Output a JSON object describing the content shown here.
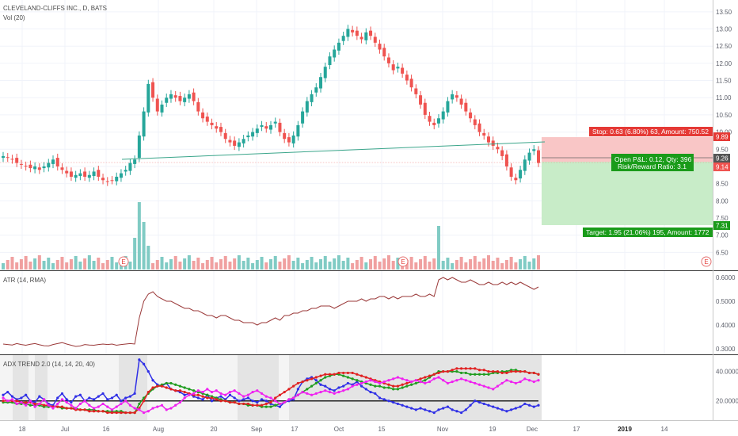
{
  "symbol_title": "CLEVELAND-CLIFFS INC., D, BATS",
  "volume_label": "Vol (20)",
  "atr_label": "ATR (14, RMA)",
  "adx_label": "ADX TREND 2.0 (14, 14, 20, 40)",
  "earnings_marker": "E",
  "colors": {
    "up": "#26a69a",
    "down": "#ef5350",
    "vol_up": "#80cbc4",
    "vol_down": "#f0a0a0",
    "atr_line": "#9b3a3a",
    "stop_zone": "#f9c6c6",
    "target_zone": "#c8ecc8",
    "trend_line": "#3aa58a",
    "adx_blue": "#2f2fe6",
    "adx_green": "#1f9c1f",
    "adx_red": "#e02020",
    "adx_magenta": "#f020f0"
  },
  "position_tool": {
    "stop_label": "Stop: 0.63 (6.80%) 63, Amount: 750.52",
    "open_pl_label": "Open P&L: 0.12, Qty: 396",
    "risk_reward_label": "Risk/Reward Ratio: 3.1",
    "target_label": "Target: 1.95 (21.06%) 195, Amount: 1772"
  },
  "price_badges": {
    "stop": "9.89",
    "entry": "9.26",
    "current": "9.14",
    "target": "7.31"
  },
  "x_axis_labels": [
    "18",
    "Jul",
    "16",
    "Aug",
    "20",
    "Sep",
    "17",
    "Oct",
    "15",
    "Nov",
    "19",
    "Dec",
    "17",
    "2019",
    "14"
  ],
  "chart_data": [
    {
      "type": "candlestick",
      "title": "CLEVELAND-CLIFFS INC., D, BATS",
      "y_axis_ticks": [
        6.5,
        7.0,
        7.5,
        8.0,
        8.5,
        9.0,
        9.5,
        10.0,
        10.5,
        11.0,
        11.5,
        12.0,
        12.5,
        13.0,
        13.5
      ],
      "ylim": [
        6.0,
        13.75
      ],
      "y_axis_tick_labels": [
        "6.50",
        "7.00",
        "7.50",
        "8.00",
        "8.50",
        "9.00",
        "9.50",
        "10.00",
        "10.50",
        "11.00",
        "11.50",
        "12.00",
        "12.50",
        "13.00",
        "13.50"
      ],
      "ohlc_close": [
        9.3,
        9.25,
        9.2,
        9.1,
        9.05,
        9.0,
        8.95,
        9.0,
        8.9,
        9.0,
        9.1,
        9.2,
        9.0,
        8.9,
        8.8,
        8.7,
        8.75,
        8.8,
        8.7,
        8.75,
        8.85,
        8.7,
        8.6,
        8.55,
        8.6,
        8.7,
        8.8,
        8.9,
        9.1,
        9.2,
        9.9,
        10.6,
        11.4,
        11.0,
        10.6,
        10.8,
        11.0,
        11.1,
        11.0,
        10.9,
        11.0,
        11.1,
        10.9,
        10.6,
        10.4,
        10.3,
        10.2,
        10.1,
        10.0,
        9.8,
        9.7,
        9.6,
        9.7,
        9.8,
        9.9,
        10.0,
        10.1,
        10.2,
        10.1,
        10.2,
        10.3,
        10.0,
        9.8,
        9.7,
        9.9,
        10.2,
        10.6,
        10.9,
        11.1,
        11.3,
        11.6,
        11.9,
        12.2,
        12.4,
        12.6,
        12.8,
        13.0,
        12.9,
        12.8,
        12.7,
        12.9,
        12.8,
        12.6,
        12.4,
        12.2,
        12.0,
        11.8,
        11.9,
        11.7,
        11.5,
        11.3,
        11.1,
        10.8,
        10.5,
        10.3,
        10.2,
        10.4,
        10.6,
        10.9,
        11.1,
        11.0,
        10.8,
        10.6,
        10.4,
        10.2,
        10.0,
        9.9,
        9.7,
        9.6,
        9.5,
        9.3,
        9.0,
        8.7,
        8.6,
        8.9,
        9.2,
        9.4,
        9.5,
        9.1
      ],
      "volume_axis_ticks": [
        "6.50"
      ]
    },
    {
      "type": "line",
      "title": "ATR (14, RMA)",
      "y_axis_ticks": [
        0.3,
        0.4,
        0.5,
        0.6
      ],
      "y_axis_tick_labels": [
        "0.3000",
        "0.4000",
        "0.5000",
        "0.6000"
      ],
      "ylim": [
        0.28,
        0.62
      ],
      "values": [
        0.32,
        0.318,
        0.316,
        0.322,
        0.318,
        0.315,
        0.319,
        0.322,
        0.317,
        0.313,
        0.312,
        0.318,
        0.322,
        0.326,
        0.32,
        0.315,
        0.31,
        0.312,
        0.318,
        0.316,
        0.315,
        0.318,
        0.32,
        0.318,
        0.32,
        0.315,
        0.318,
        0.32,
        0.322,
        0.32,
        0.43,
        0.5,
        0.53,
        0.54,
        0.52,
        0.51,
        0.5,
        0.5,
        0.49,
        0.48,
        0.47,
        0.47,
        0.46,
        0.46,
        0.45,
        0.44,
        0.44,
        0.43,
        0.44,
        0.44,
        0.43,
        0.42,
        0.42,
        0.41,
        0.41,
        0.41,
        0.4,
        0.41,
        0.41,
        0.42,
        0.43,
        0.42,
        0.44,
        0.44,
        0.45,
        0.45,
        0.46,
        0.46,
        0.47,
        0.47,
        0.48,
        0.48,
        0.48,
        0.47,
        0.48,
        0.49,
        0.5,
        0.5,
        0.5,
        0.51,
        0.5,
        0.51,
        0.51,
        0.52,
        0.52,
        0.51,
        0.52,
        0.51,
        0.52,
        0.52,
        0.52,
        0.53,
        0.52,
        0.52,
        0.53,
        0.52,
        0.59,
        0.6,
        0.59,
        0.6,
        0.59,
        0.58,
        0.58,
        0.59,
        0.58,
        0.57,
        0.57,
        0.58,
        0.57,
        0.57,
        0.58,
        0.57,
        0.58,
        0.57,
        0.58,
        0.57,
        0.56,
        0.55,
        0.56
      ]
    },
    {
      "type": "line",
      "title": "ADX TREND 2.0 (14, 14, 20, 40)",
      "y_axis_ticks": [
        20,
        40
      ],
      "y_axis_tick_labels": [
        "20.0000",
        "40.0000"
      ],
      "ylim": [
        8,
        50
      ],
      "threshold": 20,
      "series": [
        {
          "key": "adx",
          "color": "#2f2fe6",
          "values": [
            24,
            26,
            23,
            21,
            22,
            24,
            20,
            19,
            23,
            21,
            18,
            17,
            22,
            25,
            21,
            19,
            23,
            24,
            20,
            22,
            21,
            23,
            25,
            21,
            22,
            24,
            20,
            22,
            23,
            25,
            48,
            45,
            40,
            34,
            31,
            30,
            32,
            28,
            27,
            26,
            24,
            25,
            23,
            22,
            21,
            24,
            20,
            22,
            23,
            21,
            24,
            22,
            20,
            21,
            22,
            20,
            19,
            21,
            20,
            18,
            17,
            16,
            19,
            20,
            21,
            28,
            33,
            35,
            36,
            34,
            31,
            30,
            28,
            27,
            29,
            30,
            32,
            31,
            33,
            30,
            28,
            26,
            25,
            22,
            21,
            20,
            19,
            18,
            17,
            16,
            15,
            14,
            15,
            14,
            13,
            12,
            14,
            15,
            16,
            14,
            13,
            12,
            14,
            17,
            20,
            19,
            18,
            17,
            16,
            15,
            14,
            13,
            14,
            15,
            16,
            18,
            17,
            16,
            17
          ]
        },
        {
          "key": "di_plus",
          "color": "#1f9c1f",
          "values": [
            19,
            19,
            19,
            18,
            18,
            18,
            17,
            17,
            17,
            16,
            16,
            16,
            16,
            15,
            15,
            15,
            15,
            14,
            14,
            14,
            14,
            13,
            13,
            13,
            13,
            13,
            13,
            12,
            12,
            12,
            18,
            22,
            25,
            28,
            30,
            31,
            32,
            32,
            31,
            30,
            29,
            28,
            27,
            26,
            25,
            24,
            23,
            22,
            21,
            20,
            19,
            19,
            18,
            18,
            17,
            17,
            17,
            16,
            16,
            16,
            17,
            18,
            19,
            21,
            22,
            24,
            26,
            28,
            30,
            32,
            34,
            36,
            37,
            38,
            38,
            37,
            36,
            35,
            34,
            33,
            32,
            31,
            30,
            30,
            29,
            29,
            28,
            28,
            29,
            30,
            31,
            32,
            33,
            34,
            36,
            38,
            40,
            40,
            40,
            40,
            40,
            39,
            39,
            38,
            38,
            38,
            38,
            38,
            39,
            39,
            40,
            40,
            41,
            41,
            40,
            40,
            39,
            39,
            38
          ]
        },
        {
          "key": "di_minus",
          "color": "#e02020",
          "values": [
            20,
            20,
            20,
            20,
            19,
            19,
            19,
            18,
            18,
            17,
            17,
            16,
            16,
            16,
            15,
            15,
            14,
            14,
            14,
            13,
            13,
            13,
            13,
            12,
            12,
            12,
            12,
            12,
            12,
            12,
            15,
            20,
            26,
            29,
            30,
            30,
            29,
            28,
            27,
            27,
            26,
            25,
            24,
            24,
            23,
            22,
            22,
            21,
            20,
            20,
            19,
            19,
            18,
            18,
            18,
            17,
            17,
            17,
            18,
            19,
            22,
            24,
            26,
            28,
            30,
            32,
            33,
            34,
            35,
            36,
            37,
            38,
            38,
            38,
            39,
            39,
            39,
            39,
            38,
            37,
            36,
            35,
            34,
            33,
            32,
            31,
            30,
            30,
            31,
            32,
            33,
            34,
            35,
            36,
            37,
            38,
            39,
            40,
            40,
            41,
            42,
            42,
            42,
            42,
            42,
            41,
            41,
            40,
            40,
            40,
            39,
            39,
            40,
            40,
            40,
            40,
            39,
            39,
            38
          ]
        },
        {
          "key": "dx",
          "color": "#f020f0",
          "values": [
            22,
            20,
            21,
            18,
            19,
            17,
            20,
            16,
            18,
            21,
            17,
            15,
            18,
            21,
            19,
            17,
            15,
            18,
            20,
            17,
            15,
            16,
            18,
            16,
            14,
            16,
            18,
            20,
            17,
            15,
            14,
            12,
            13,
            15,
            16,
            17,
            14,
            15,
            17,
            19,
            22,
            24,
            25,
            27,
            26,
            28,
            26,
            27,
            25,
            24,
            26,
            27,
            25,
            23,
            24,
            26,
            27,
            25,
            23,
            22,
            20,
            18,
            19,
            21,
            22,
            24,
            26,
            25,
            24,
            25,
            26,
            27,
            26,
            25,
            26,
            27,
            28,
            30,
            31,
            32,
            33,
            34,
            33,
            32,
            33,
            34,
            35,
            36,
            35,
            34,
            33,
            34,
            33,
            32,
            33,
            35,
            36,
            34,
            32,
            33,
            34,
            35,
            34,
            33,
            32,
            31,
            30,
            29,
            28,
            30,
            32,
            34,
            33,
            32,
            33,
            35,
            34,
            33,
            34
          ]
        }
      ]
    }
  ]
}
